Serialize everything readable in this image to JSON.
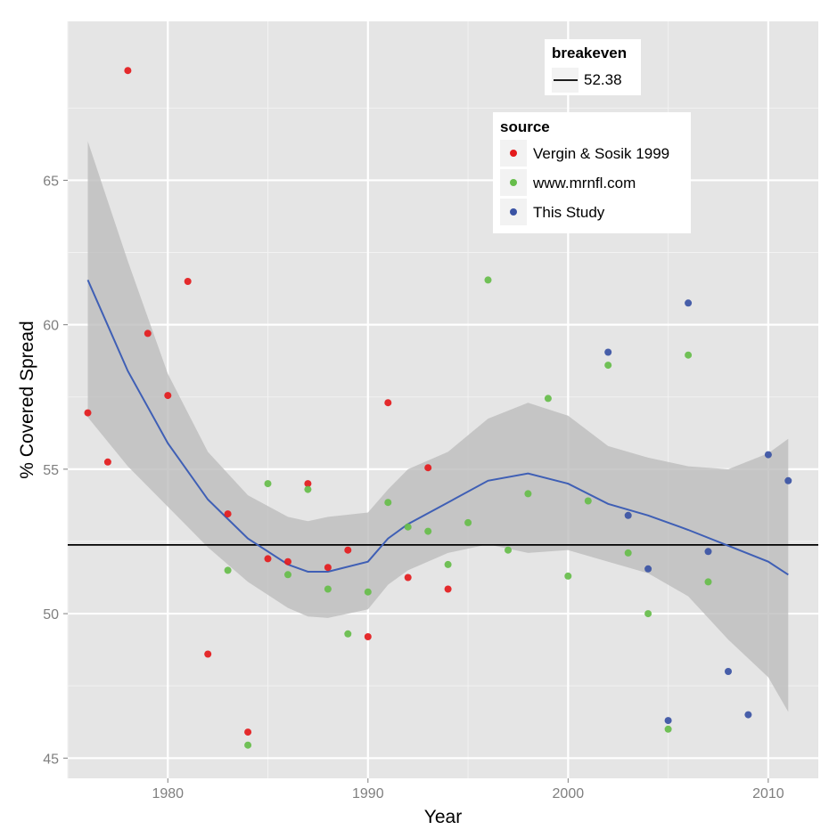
{
  "chart_data": {
    "type": "scatter",
    "xlabel": "Year",
    "ylabel": "% Covered Spread",
    "xlim": [
      1975,
      2012.5
    ],
    "ylim": [
      44.3,
      70.5
    ],
    "x_ticks": [
      1980,
      1990,
      2000,
      2010
    ],
    "y_ticks": [
      45,
      50,
      55,
      60,
      65
    ],
    "grid": true,
    "breakeven": {
      "title": "breakeven",
      "value": 52.38,
      "label": "52.38"
    },
    "source_legend": {
      "title": "source",
      "placement": "top-right"
    },
    "series": [
      {
        "name": "Vergin & Sosik 1999",
        "color": "#e41a1c",
        "points": [
          {
            "x": 1976,
            "y": 56.95
          },
          {
            "x": 1977,
            "y": 55.25
          },
          {
            "x": 1978,
            "y": 68.8
          },
          {
            "x": 1979,
            "y": 59.7
          },
          {
            "x": 1980,
            "y": 57.55
          },
          {
            "x": 1981,
            "y": 61.5
          },
          {
            "x": 1982,
            "y": 48.6
          },
          {
            "x": 1983,
            "y": 53.45
          },
          {
            "x": 1984,
            "y": 45.9
          },
          {
            "x": 1985,
            "y": 51.9
          },
          {
            "x": 1986,
            "y": 51.8
          },
          {
            "x": 1987,
            "y": 54.5
          },
          {
            "x": 1988,
            "y": 51.6
          },
          {
            "x": 1989,
            "y": 52.2
          },
          {
            "x": 1990,
            "y": 49.2
          },
          {
            "x": 1991,
            "y": 57.3
          },
          {
            "x": 1992,
            "y": 51.25
          },
          {
            "x": 1993,
            "y": 55.05
          },
          {
            "x": 1994,
            "y": 50.85
          }
        ]
      },
      {
        "name": "www.mrnfl.com",
        "color": "#66bd4a",
        "points": [
          {
            "x": 1983,
            "y": 51.5
          },
          {
            "x": 1984,
            "y": 45.45
          },
          {
            "x": 1985,
            "y": 54.5
          },
          {
            "x": 1986,
            "y": 51.35
          },
          {
            "x": 1987,
            "y": 54.3
          },
          {
            "x": 1988,
            "y": 50.85
          },
          {
            "x": 1989,
            "y": 49.3
          },
          {
            "x": 1990,
            "y": 50.75
          },
          {
            "x": 1991,
            "y": 53.85
          },
          {
            "x": 1992,
            "y": 53.0
          },
          {
            "x": 1993,
            "y": 52.85
          },
          {
            "x": 1994,
            "y": 51.7
          },
          {
            "x": 1995,
            "y": 53.15
          },
          {
            "x": 1996,
            "y": 61.55
          },
          {
            "x": 1997,
            "y": 52.2
          },
          {
            "x": 1998,
            "y": 54.15
          },
          {
            "x": 1999,
            "y": 57.45
          },
          {
            "x": 2000,
            "y": 51.3
          },
          {
            "x": 2001,
            "y": 53.9
          },
          {
            "x": 2002,
            "y": 58.6
          },
          {
            "x": 2003,
            "y": 52.1
          },
          {
            "x": 2004,
            "y": 50.0
          },
          {
            "x": 2005,
            "y": 46.0
          },
          {
            "x": 2006,
            "y": 58.95
          },
          {
            "x": 2007,
            "y": 51.1
          }
        ]
      },
      {
        "name": "This Study",
        "color": "#3a53a4",
        "points": [
          {
            "x": 2002,
            "y": 59.05
          },
          {
            "x": 2003,
            "y": 53.4
          },
          {
            "x": 2004,
            "y": 51.55
          },
          {
            "x": 2005,
            "y": 46.3
          },
          {
            "x": 2006,
            "y": 60.75
          },
          {
            "x": 2007,
            "y": 52.15
          },
          {
            "x": 2008,
            "y": 48.0
          },
          {
            "x": 2009,
            "y": 46.5
          },
          {
            "x": 2010,
            "y": 55.5
          },
          {
            "x": 2011,
            "y": 54.6
          }
        ]
      }
    ],
    "smooth": {
      "color": "#3f5fb5",
      "band_color": "#bdbdbd",
      "points": [
        {
          "x": 1976,
          "y": 61.55,
          "lo": 56.8,
          "hi": 66.35
        },
        {
          "x": 1978,
          "y": 58.4,
          "lo": 55.1,
          "hi": 62.2
        },
        {
          "x": 1980,
          "y": 55.9,
          "lo": 53.7,
          "hi": 58.3
        },
        {
          "x": 1982,
          "y": 53.95,
          "lo": 52.3,
          "hi": 55.6
        },
        {
          "x": 1984,
          "y": 52.6,
          "lo": 51.1,
          "hi": 54.1
        },
        {
          "x": 1986,
          "y": 51.7,
          "lo": 50.2,
          "hi": 53.35
        },
        {
          "x": 1987,
          "y": 51.45,
          "lo": 49.9,
          "hi": 53.2
        },
        {
          "x": 1988,
          "y": 51.45,
          "lo": 49.85,
          "hi": 53.35
        },
        {
          "x": 1990,
          "y": 51.8,
          "lo": 50.15,
          "hi": 53.5
        },
        {
          "x": 1991,
          "y": 52.6,
          "lo": 51.0,
          "hi": 54.3
        },
        {
          "x": 1992,
          "y": 53.1,
          "lo": 51.5,
          "hi": 55.0
        },
        {
          "x": 1994,
          "y": 53.85,
          "lo": 52.1,
          "hi": 55.6
        },
        {
          "x": 1996,
          "y": 54.6,
          "lo": 52.4,
          "hi": 56.75
        },
        {
          "x": 1998,
          "y": 54.85,
          "lo": 52.1,
          "hi": 57.3
        },
        {
          "x": 2000,
          "y": 54.5,
          "lo": 52.2,
          "hi": 56.85
        },
        {
          "x": 2002,
          "y": 53.8,
          "lo": 51.8,
          "hi": 55.8
        },
        {
          "x": 2004,
          "y": 53.4,
          "lo": 51.4,
          "hi": 55.4
        },
        {
          "x": 2006,
          "y": 52.9,
          "lo": 50.6,
          "hi": 55.1
        },
        {
          "x": 2008,
          "y": 52.35,
          "lo": 49.1,
          "hi": 55.0
        },
        {
          "x": 2010,
          "y": 51.8,
          "lo": 47.8,
          "hi": 55.55
        },
        {
          "x": 2011,
          "y": 51.35,
          "lo": 46.6,
          "hi": 56.05
        }
      ]
    }
  }
}
